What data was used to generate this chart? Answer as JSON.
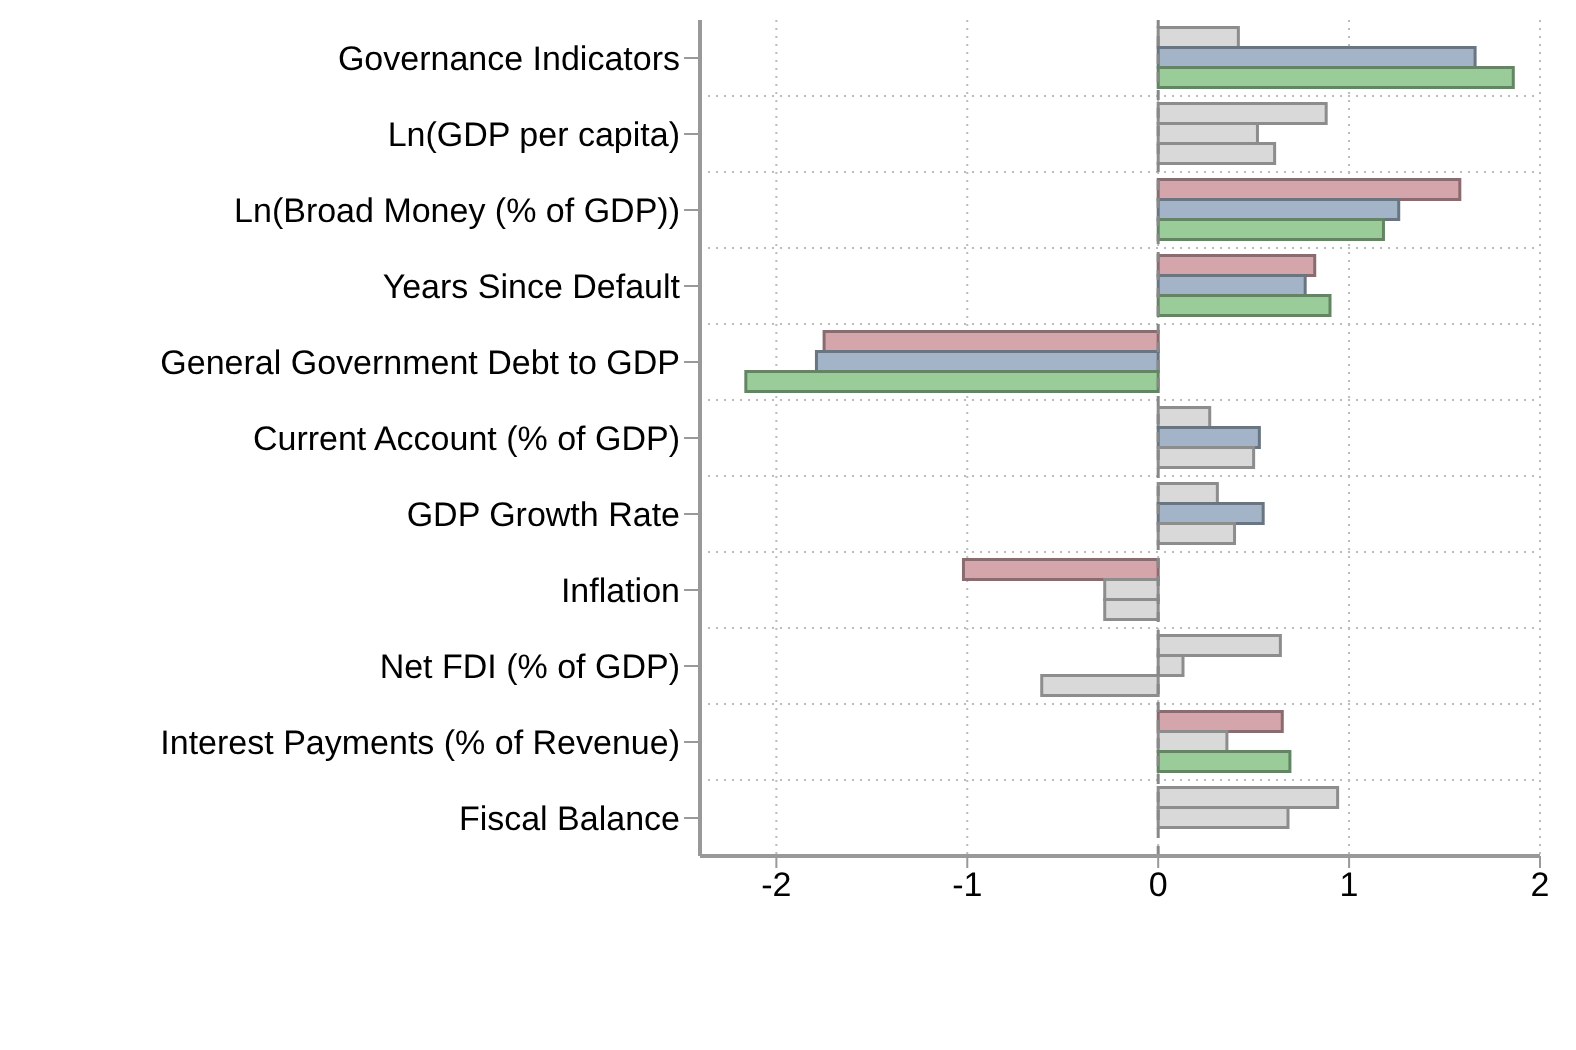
{
  "chart_data": {
    "type": "bar",
    "orientation": "horizontal",
    "categories": [
      "Governance Indicators",
      "Ln(GDP per capita)",
      "Ln(Broad Money (% of GDP))",
      "Years Since Default",
      "General Government Debt to GDP",
      "Current Account (% of GDP)",
      "GDP Growth Rate",
      "Inflation",
      "Net FDI (% of GDP)",
      "Interest Payments (% of Revenue)",
      "Fiscal Balance"
    ],
    "series": [
      {
        "colors": [
          "#d9d9d9",
          "#d9d9d9",
          "#d4a5aa",
          "#d4a5aa",
          "#d4a5aa",
          "#d9d9d9",
          "#d9d9d9",
          "#d4a5aa",
          "#d9d9d9",
          "#d4a5aa",
          "#d9d9d9"
        ],
        "values": [
          0.42,
          0.88,
          1.58,
          0.82,
          -1.75,
          0.27,
          0.31,
          -1.02,
          0.64,
          0.65,
          0.94
        ]
      },
      {
        "colors": [
          "#a3b4c8",
          "#d9d9d9",
          "#a3b4c8",
          "#a3b4c8",
          "#a3b4c8",
          "#a3b4c8",
          "#a3b4c8",
          "#d9d9d9",
          "#d9d9d9",
          "#d9d9d9",
          "#d9d9d9"
        ],
        "values": [
          1.66,
          0.52,
          1.26,
          0.77,
          -1.79,
          0.53,
          0.55,
          -0.28,
          0.13,
          0.36,
          0.68
        ]
      },
      {
        "colors": [
          "#99cc99",
          "#d9d9d9",
          "#99cc99",
          "#99cc99",
          "#99cc99",
          "#d9d9d9",
          "#d9d9d9",
          "#d9d9d9",
          "#d9d9d9",
          "#99cc99",
          null
        ],
        "values": [
          1.86,
          0.61,
          1.18,
          0.9,
          -2.16,
          0.5,
          0.4,
          -0.28,
          -0.61,
          0.69,
          null
        ]
      }
    ],
    "xlim": [
      -2.4,
      2.0
    ],
    "xticks": [
      -2,
      -1,
      0,
      1,
      2
    ],
    "grid": true,
    "legend": false,
    "ref_lines": [
      {
        "axis": "x",
        "value": 0,
        "color": "#888888",
        "line_style": "dashed"
      }
    ]
  }
}
